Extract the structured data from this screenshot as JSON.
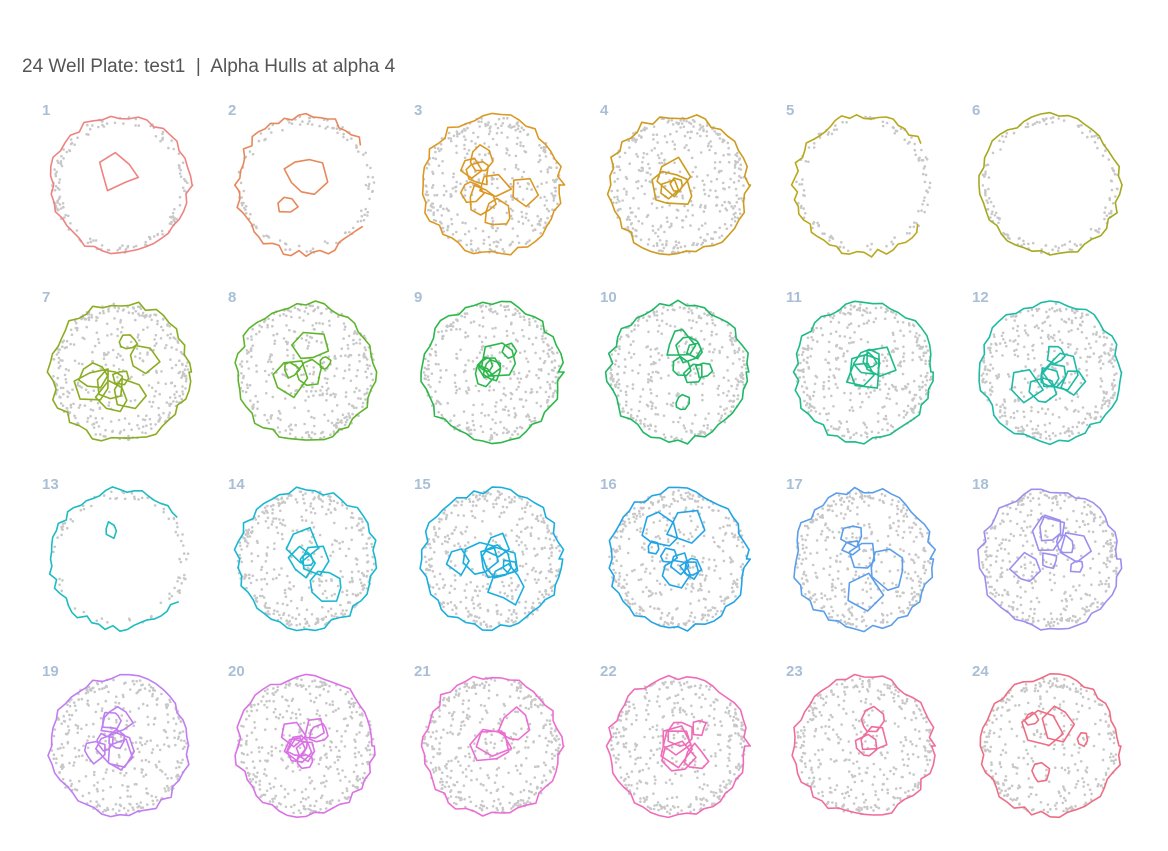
{
  "title": "24 Well Plate: test1  |  Alpha Hulls at alpha 4",
  "chart_data": {
    "type": "scatter",
    "title": "24 Well Plate: test1  |  Alpha Hulls at alpha 4",
    "subtitle": "",
    "xlabel": "",
    "ylabel": "",
    "grid": false,
    "legend": "none",
    "layout": {
      "rows": 4,
      "cols": 6
    },
    "point_color": "#c8c8c8",
    "wells": [
      {
        "label": "1",
        "color": "#ee8380",
        "coverage": 0.25,
        "ring": "full",
        "blobs": 1
      },
      {
        "label": "2",
        "color": "#e8875a",
        "coverage": 0.15,
        "ring": "partial",
        "blobs": 2
      },
      {
        "label": "3",
        "color": "#dc9823",
        "coverage": 0.8,
        "ring": "full",
        "blobs": 8
      },
      {
        "label": "4",
        "color": "#cd9b1d",
        "coverage": 0.85,
        "ring": "full",
        "blobs": 4
      },
      {
        "label": "5",
        "color": "#b8a81c",
        "coverage": 0.15,
        "ring": "partial",
        "blobs": 0
      },
      {
        "label": "6",
        "color": "#a5a91f",
        "coverage": 0.2,
        "ring": "full",
        "blobs": 0
      },
      {
        "label": "7",
        "color": "#8aad22",
        "coverage": 0.8,
        "ring": "full",
        "blobs": 8
      },
      {
        "label": "8",
        "color": "#5eb52b",
        "coverage": 0.8,
        "ring": "full",
        "blobs": 5
      },
      {
        "label": "9",
        "color": "#2bb84b",
        "coverage": 0.8,
        "ring": "full",
        "blobs": 6
      },
      {
        "label": "10",
        "color": "#20b765",
        "coverage": 0.8,
        "ring": "full",
        "blobs": 7
      },
      {
        "label": "11",
        "color": "#1ebb8a",
        "coverage": 0.85,
        "ring": "full",
        "blobs": 5
      },
      {
        "label": "12",
        "color": "#1dbba5",
        "coverage": 0.85,
        "ring": "full",
        "blobs": 7
      },
      {
        "label": "13",
        "color": "#1cbcc0",
        "coverage": 0.05,
        "ring": "partial",
        "blobs": 1
      },
      {
        "label": "14",
        "color": "#19b8d1",
        "coverage": 0.85,
        "ring": "full",
        "blobs": 5
      },
      {
        "label": "15",
        "color": "#1aaede",
        "coverage": 0.85,
        "ring": "full",
        "blobs": 7
      },
      {
        "label": "16",
        "color": "#22a4e6",
        "coverage": 0.85,
        "ring": "full",
        "blobs": 8
      },
      {
        "label": "17",
        "color": "#5b9eea",
        "coverage": 0.85,
        "ring": "full",
        "blobs": 5
      },
      {
        "label": "18",
        "color": "#9c8ff0",
        "coverage": 0.85,
        "ring": "full",
        "blobs": 7
      },
      {
        "label": "19",
        "color": "#c07ef0",
        "coverage": 0.8,
        "ring": "full",
        "blobs": 7
      },
      {
        "label": "20",
        "color": "#da72e6",
        "coverage": 0.85,
        "ring": "full",
        "blobs": 8
      },
      {
        "label": "21",
        "color": "#ec6ed2",
        "coverage": 0.9,
        "ring": "full",
        "blobs": 3
      },
      {
        "label": "22",
        "color": "#f06cb9",
        "coverage": 0.85,
        "ring": "full",
        "blobs": 6
      },
      {
        "label": "23",
        "color": "#f06c9d",
        "coverage": 0.8,
        "ring": "full",
        "blobs": 3
      },
      {
        "label": "24",
        "color": "#ee6d84",
        "coverage": 0.7,
        "ring": "full",
        "blobs": 5
      }
    ]
  }
}
